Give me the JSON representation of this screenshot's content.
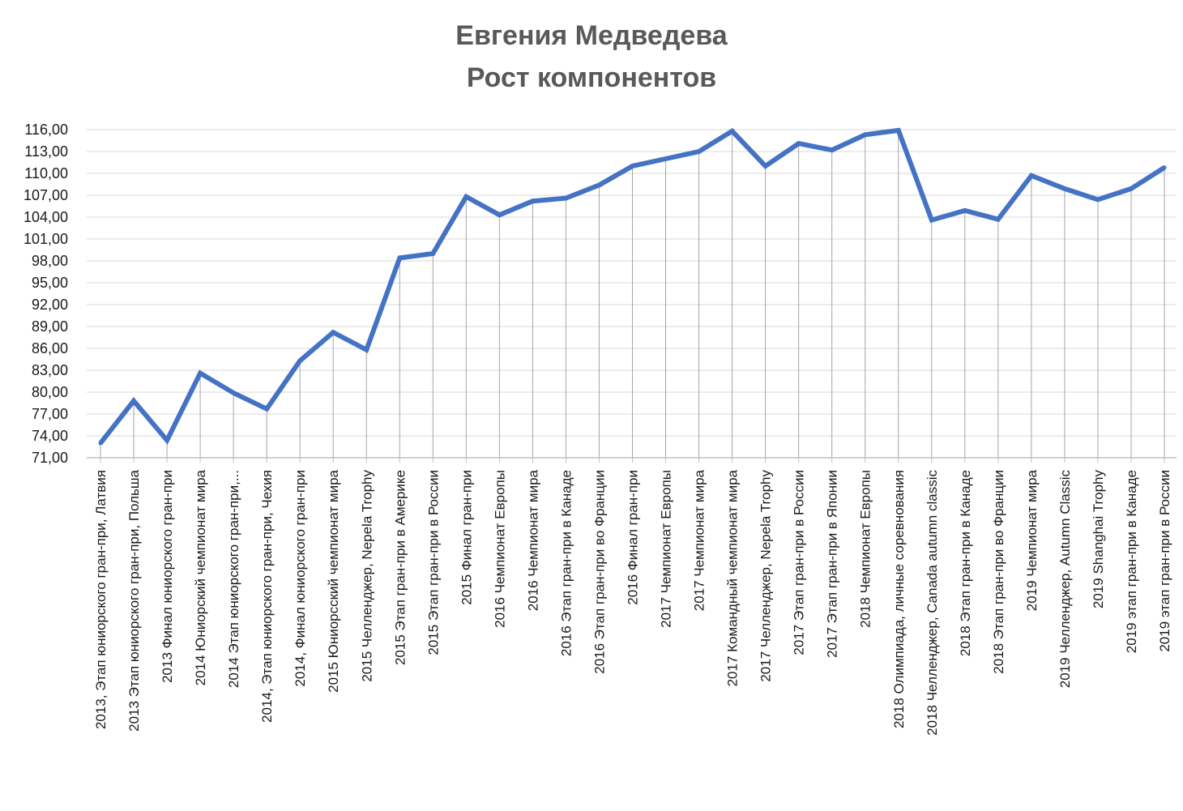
{
  "chart_data": {
    "type": "line",
    "title": "Евгения Медведева",
    "subtitle": "Рост компонентов",
    "xlabel": "",
    "ylabel": "",
    "ylim": [
      71,
      116
    ],
    "ytick_step": 3,
    "ytick_labels": [
      "71,00",
      "74,00",
      "77,00",
      "80,00",
      "83,00",
      "86,00",
      "89,00",
      "92,00",
      "95,00",
      "98,00",
      "101,00",
      "104,00",
      "107,00",
      "110,00",
      "113,00",
      "116,00"
    ],
    "grid": true,
    "legend": "none",
    "line_color": "#4472c4",
    "categories": [
      "2013, Этап юниорского гран-при, Латвия",
      "2013 Этап юниорского гран-при, Польша",
      "2013 Финал юниорского гран-при",
      "2014 Юниорский чемпионат мира",
      "2014 Этап юниорского гран-при,...",
      "2014, Этап юниорского гран-при, Чехия",
      "2014, Финал юниорского гран-при",
      "2015 Юниорсский чемпионат мира",
      "2015 Челленджер, Nepela Trophy",
      "2015 Этап гран-при в Америке",
      "2015 Этап гран-при в России",
      "2015 Финал гран-при",
      "2016 Чемпионат Европы",
      "2016 Чемпионат мира",
      "2016 Этап гран-при в Канаде",
      "2016 Этап гран-при во Франции",
      "2016 Финал гран-при",
      "2017 Чемпионат Европы",
      "2017 Чемпионат мира",
      "2017 Командный чемпионат мира",
      "2017 Челленджер, Nepela Trophy",
      "2017 Этап гран-при в России",
      "2017 Этап гран-при в Японии",
      "2018 Чемпионат Европы",
      "2018 Олимпиада, личные соревнования",
      "2018 Челленджер, Canada autumn classic",
      "2018 Этап гран-при в Канаде",
      "2018 Этап гран-при во Франции",
      "2019 Чемпионат мира",
      "2019 Челленджер, Autumn Classic",
      "2019 Shanghai Trophy",
      "2019 этап гран-при в Канаде",
      "2019 этап гран-при в России"
    ],
    "series": [
      {
        "values": [
          73.0,
          78.8,
          73.4,
          82.6,
          79.9,
          77.7,
          84.3,
          88.2,
          85.8,
          98.4,
          99.0,
          106.8,
          104.3,
          106.2,
          106.6,
          108.4,
          111.0,
          112.0,
          113.0,
          115.8,
          111.0,
          114.1,
          113.2,
          115.3,
          115.9,
          103.6,
          104.9,
          103.7,
          109.7,
          107.9,
          106.4,
          107.9,
          110.8
        ]
      }
    ]
  }
}
